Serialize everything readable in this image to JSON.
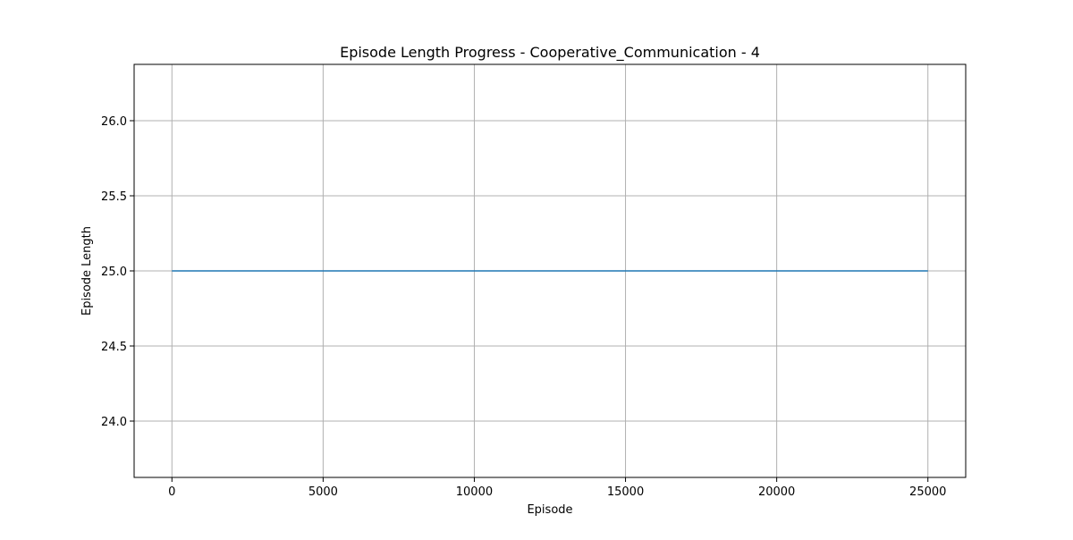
{
  "chart_data": {
    "type": "line",
    "title": "Episode Length Progress - Cooperative_Communication - 4",
    "xlabel": "Episode",
    "ylabel": "Episode Length",
    "xlim": [
      -1250,
      26250
    ],
    "ylim": [
      23.625,
      26.375
    ],
    "x_ticks": [
      0,
      5000,
      10000,
      15000,
      20000,
      25000
    ],
    "x_tick_labels": [
      "0",
      "5000",
      "10000",
      "15000",
      "20000",
      "25000"
    ],
    "y_ticks": [
      24.0,
      24.5,
      25.0,
      25.5,
      26.0
    ],
    "y_tick_labels": [
      "24.0",
      "24.5",
      "25.0",
      "25.5",
      "26.0"
    ],
    "grid": true,
    "series": [
      {
        "color": "#1f77b4",
        "x": [
          0,
          25000
        ],
        "y": [
          25.0,
          25.0
        ]
      }
    ]
  }
}
